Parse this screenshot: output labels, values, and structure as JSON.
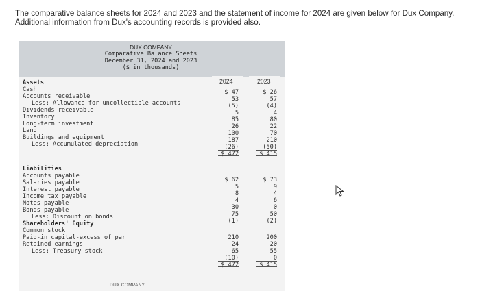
{
  "intro": {
    "line1": "The comparative balance sheets for 2024 and 2023 and the statement of income for 2024 are given below for Dux Company.",
    "line2": "Additional information from Dux's accounting records is provided also."
  },
  "statement": {
    "company": "DUX COMPANY",
    "title": "Comparative Balance Sheets",
    "date": "December 31, 2024 and 2023",
    "units": "($ in thousands)"
  },
  "columns": {
    "y2024": "2024",
    "y2023": "2023"
  },
  "assets_label": "Assets",
  "assets": [
    {
      "label": "Cash",
      "v2024": "$ 47",
      "v2023": "$ 26"
    },
    {
      "label": "Accounts receivable",
      "v2024": "53",
      "v2023": "57"
    },
    {
      "label": "Less: Allowance for uncollectible accounts",
      "v2024": "(5)",
      "v2023": "(4)"
    },
    {
      "label": "Dividends receivable",
      "v2024": "5",
      "v2023": "4"
    },
    {
      "label": "Inventory",
      "v2024": "85",
      "v2023": "80"
    },
    {
      "label": "Long-term investment",
      "v2024": "26",
      "v2023": "22"
    },
    {
      "label": "Land",
      "v2024": "100",
      "v2023": "70"
    },
    {
      "label": "Buildings and equipment",
      "v2024": "187",
      "v2023": "210"
    },
    {
      "label": "Less: Accumulated depreciation",
      "v2024": "(26)",
      "v2023": "(50)"
    }
  ],
  "assets_total": {
    "v2024": "$ 472",
    "v2023": "$ 415"
  },
  "liabilities_label": "Liabilities",
  "liabilities": [
    {
      "label": "Accounts payable",
      "v2024": "$ 62",
      "v2023": "$ 73"
    },
    {
      "label": "Salaries payable",
      "v2024": "5",
      "v2023": "9"
    },
    {
      "label": "Interest payable",
      "v2024": "8",
      "v2023": "4"
    },
    {
      "label": "Income tax payable",
      "v2024": "4",
      "v2023": "6"
    },
    {
      "label": "Notes payable",
      "v2024": "30",
      "v2023": "0"
    },
    {
      "label": "Bonds payable",
      "v2024": "75",
      "v2023": "50"
    },
    {
      "label": "Less: Discount on bonds",
      "v2024": "(1)",
      "v2023": "(2)"
    }
  ],
  "equity_label": "Shareholders' Equity",
  "equity": [
    {
      "label": "Common stock",
      "v2024": "210",
      "v2023": "200"
    },
    {
      "label": "Paid-in capital-excess of par",
      "v2024": "24",
      "v2023": "20"
    },
    {
      "label": "Retained earnings",
      "v2024": "65",
      "v2023": "55"
    },
    {
      "label": "Less: Treasury stock",
      "v2024": "(10)",
      "v2023": "0"
    }
  ],
  "liab_equity_total": {
    "v2024": "$ 472",
    "v2023": "$ 415"
  },
  "footer_company": "DUX COMPANY",
  "cursor_icon": "mouse-pointer-icon"
}
